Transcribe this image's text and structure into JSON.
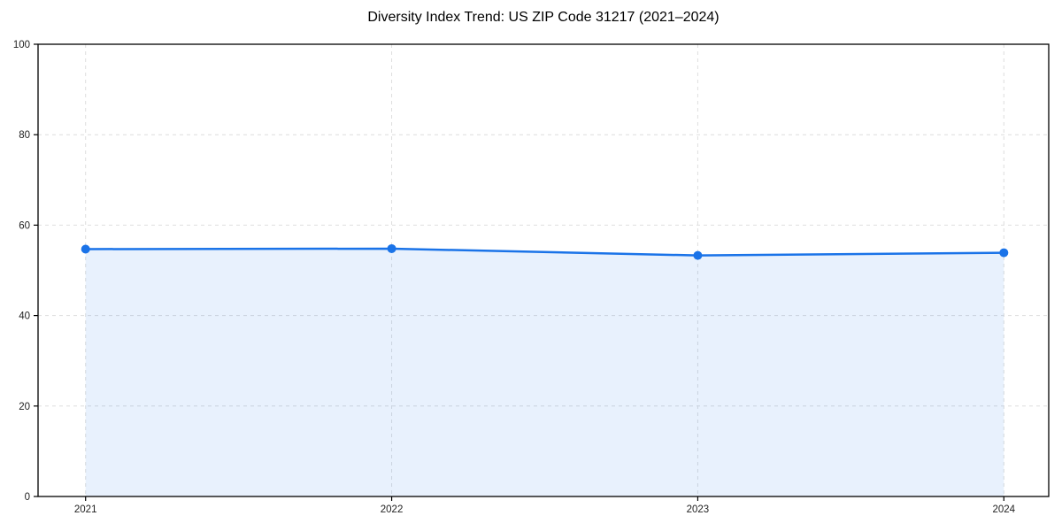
{
  "figure": {
    "background": "#ffffff"
  },
  "chart_data": {
    "type": "area",
    "title": "Diversity Index Trend: US ZIP Code 31217 (2021–2024)",
    "x": [
      2021,
      2022,
      2023,
      2024
    ],
    "xtick_labels": [
      "2021",
      "2022",
      "2023",
      "2024"
    ],
    "series": [
      {
        "name": "Diversity Index",
        "values": [
          54.7,
          54.8,
          53.3,
          53.9
        ]
      }
    ],
    "xlabel": "",
    "ylabel": "",
    "ylim": [
      0,
      100
    ],
    "yticks": [
      0,
      20,
      40,
      60,
      80,
      100
    ],
    "grid": true,
    "grid_style": "dashed",
    "legend": "none",
    "marker": "circle",
    "line_width": 2.5,
    "marker_radius": 5,
    "colors": {
      "line": "#1a73e8",
      "fill": "rgba(26,115,232,0.10)",
      "grid": "#dedede",
      "axis": "#000000",
      "tick_label": "#222222",
      "title": "#000000"
    }
  }
}
